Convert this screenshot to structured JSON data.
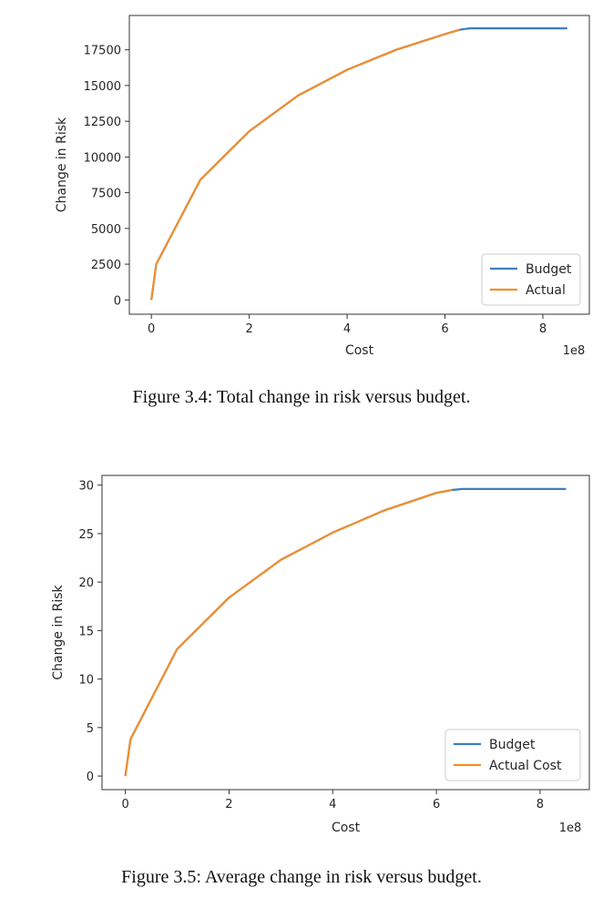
{
  "figures": [
    {
      "caption": "Figure 3.4: Total change in risk versus budget."
    },
    {
      "caption": "Figure 3.5: Average change in risk versus budget."
    }
  ],
  "chart_data": [
    {
      "type": "line",
      "xlabel": "Cost",
      "ylabel": "Change in Risk",
      "x_offset_text": "1e8",
      "xlim": [
        -0.45,
        8.95
      ],
      "ylim": [
        -1000,
        19900
      ],
      "xticks": [
        0,
        2,
        4,
        6,
        8
      ],
      "xtick_labels": [
        "0",
        "2",
        "4",
        "6",
        "8"
      ],
      "yticks": [
        0,
        2500,
        5000,
        7500,
        10000,
        12500,
        15000,
        17500
      ],
      "ytick_labels": [
        "0",
        "2500",
        "5000",
        "7500",
        "10000",
        "12500",
        "15000",
        "17500"
      ],
      "legend_position": "lower-right",
      "series": [
        {
          "name": "Budget",
          "color": "#3e7dbf",
          "x": [
            0,
            0.1,
            1,
            2,
            3,
            4,
            5,
            6,
            6.3,
            6.5,
            8.5
          ],
          "y": [
            0,
            2500,
            8400,
            11800,
            14300,
            16100,
            17500,
            18600,
            18900,
            19000,
            19000
          ]
        },
        {
          "name": "Actual",
          "color": "#f28e2b",
          "x": [
            0,
            0.1,
            1,
            2,
            3,
            4,
            5,
            6,
            6.3
          ],
          "y": [
            0,
            2500,
            8400,
            11800,
            14300,
            16100,
            17500,
            18600,
            18900
          ]
        }
      ]
    },
    {
      "type": "line",
      "xlabel": "Cost",
      "ylabel": "Change in Risk",
      "x_offset_text": "1e8",
      "xlim": [
        -0.45,
        8.95
      ],
      "ylim": [
        -1.4,
        31
      ],
      "xticks": [
        0,
        2,
        4,
        6,
        8
      ],
      "xtick_labels": [
        "0",
        "2",
        "4",
        "6",
        "8"
      ],
      "yticks": [
        0,
        5,
        10,
        15,
        20,
        25,
        30
      ],
      "ytick_labels": [
        "0",
        "5",
        "10",
        "15",
        "20",
        "25",
        "30"
      ],
      "legend_position": "lower-right",
      "series": [
        {
          "name": "Budget",
          "color": "#3e7dbf",
          "x": [
            0,
            0.1,
            1,
            2,
            3,
            4,
            5,
            6,
            6.3,
            6.5,
            8.5
          ],
          "y": [
            0,
            3.8,
            13.1,
            18.4,
            22.3,
            25.1,
            27.4,
            29.2,
            29.5,
            29.6,
            29.6
          ]
        },
        {
          "name": "Actual Cost",
          "color": "#f28e2b",
          "x": [
            0,
            0.1,
            1,
            2,
            3,
            4,
            5,
            6,
            6.3
          ],
          "y": [
            0,
            3.8,
            13.1,
            18.4,
            22.3,
            25.1,
            27.4,
            29.2,
            29.5
          ]
        }
      ]
    }
  ]
}
